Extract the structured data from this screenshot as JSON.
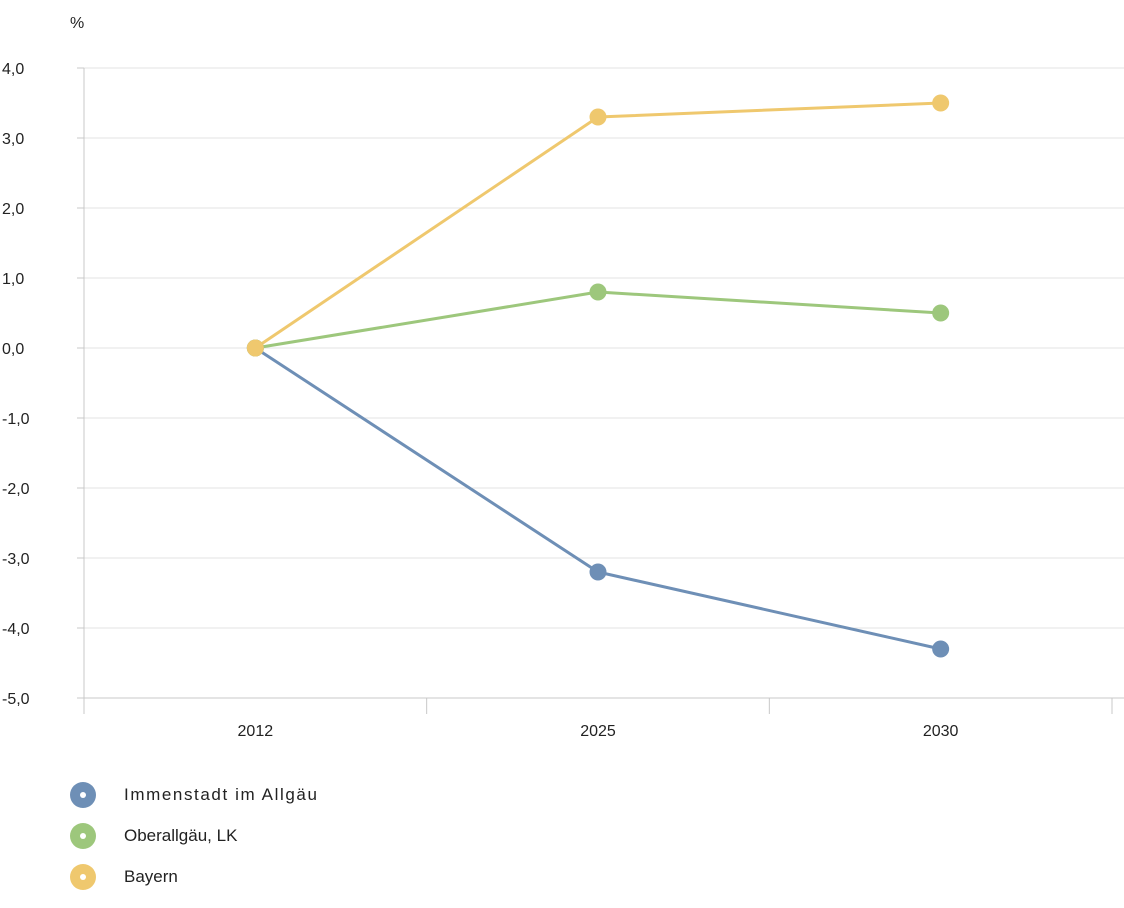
{
  "chart_data": {
    "type": "line",
    "ylabel": "%",
    "categories": [
      "2012",
      "2025",
      "2030"
    ],
    "ylim": [
      -5,
      4
    ],
    "yticks": [
      "4,0",
      "3,0",
      "2,0",
      "1,0",
      "0,0",
      "-1,0",
      "-2,0",
      "-3,0",
      "-4,0",
      "-5,0"
    ],
    "ytick_values": [
      4,
      3,
      2,
      1,
      0,
      -1,
      -2,
      -3,
      -4,
      -5
    ],
    "grid": true,
    "legend_position": "bottom-left",
    "series": [
      {
        "name": "Immenstadt im Allgäu",
        "color": "#6e8fb6",
        "values": [
          0,
          -3.2,
          -4.3
        ]
      },
      {
        "name": "Oberallgäu, LK",
        "color": "#9dc77c",
        "values": [
          0,
          0.8,
          0.5
        ]
      },
      {
        "name": "Bayern",
        "color": "#efc86e",
        "values": [
          0,
          3.3,
          3.5
        ]
      }
    ]
  }
}
